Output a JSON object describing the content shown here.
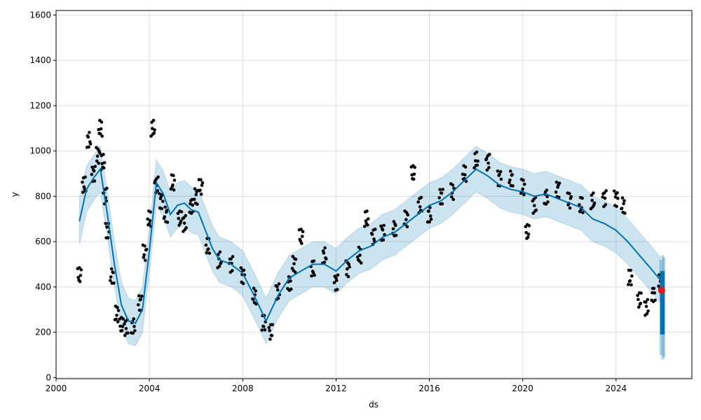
{
  "chart_data": {
    "type": "line",
    "xlabel": "ds",
    "ylabel": "y",
    "xlim": [
      2000.0,
      2027.25
    ],
    "ylim": [
      -5,
      1620
    ],
    "grid": true,
    "x_ticks": [
      2000,
      2004,
      2008,
      2012,
      2016,
      2020,
      2024
    ],
    "y_ticks": [
      0,
      200,
      400,
      600,
      800,
      1000,
      1200,
      1400,
      1600
    ],
    "colors": {
      "observed": "#000000",
      "forecast": "#0072B2",
      "uncertainty": "#0072B2",
      "highlight": "#e41a1c"
    },
    "series": [
      {
        "kind": "observed points",
        "x": [
          2001.0,
          2001.2,
          2001.4,
          2001.6,
          2001.8,
          2001.9,
          2002.0,
          2002.1,
          2002.2,
          2002.4,
          2002.6,
          2002.8,
          2003.0,
          2003.3,
          2003.6,
          2003.8,
          2004.0,
          2004.15,
          2004.3,
          2004.5,
          2004.7,
          2005.0,
          2005.3,
          2005.5,
          2005.8,
          2006.0,
          2006.2,
          2006.5,
          2007.0,
          2007.5,
          2008.0,
          2008.5,
          2008.9,
          2009.2,
          2009.5,
          2010.0,
          2010.2,
          2010.5,
          2011.0,
          2011.5,
          2012.0,
          2012.5,
          2013.0,
          2013.3,
          2013.6,
          2014.0,
          2014.5,
          2015.0,
          2015.3,
          2015.6,
          2016.0,
          2016.5,
          2017.0,
          2017.5,
          2018.0,
          2018.5,
          2019.0,
          2019.5,
          2020.0,
          2020.2,
          2020.5,
          2021.0,
          2021.5,
          2022.0,
          2022.5,
          2023.0,
          2023.5,
          2024.0,
          2024.3,
          2024.6,
          2025.0,
          2025.3,
          2025.6,
          2025.9
        ],
        "y": [
          450,
          850,
          1050,
          900,
          980,
          1100,
          950,
          800,
          650,
          450,
          280,
          230,
          220,
          230,
          330,
          550,
          700,
          1100,
          850,
          780,
          720,
          860,
          700,
          680,
          760,
          800,
          840,
          580,
          520,
          500,
          450,
          360,
          240,
          200,
          380,
          420,
          500,
          620,
          480,
          540,
          420,
          480,
          540,
          700,
          620,
          640,
          660,
          700,
          900,
          760,
          720,
          800,
          820,
          900,
          960,
          950,
          880,
          880,
          840,
          640,
          760,
          800,
          830,
          780,
          760,
          780,
          790,
          790,
          760,
          440,
          340,
          310,
          370,
          420
        ]
      },
      {
        "kind": "forecast line",
        "x": [
          2001.0,
          2001.3,
          2001.6,
          2001.9,
          2002.2,
          2002.5,
          2002.8,
          2003.1,
          2003.4,
          2003.7,
          2004.0,
          2004.3,
          2004.6,
          2004.9,
          2005.2,
          2005.5,
          2005.8,
          2006.1,
          2006.4,
          2006.7,
          2007.0,
          2007.5,
          2008.0,
          2008.5,
          2009.0,
          2009.5,
          2010.0,
          2010.5,
          2011.0,
          2011.5,
          2012.0,
          2012.5,
          2013.0,
          2013.5,
          2014.0,
          2014.5,
          2015.0,
          2015.5,
          2016.0,
          2016.5,
          2017.0,
          2017.5,
          2018.0,
          2018.5,
          2019.0,
          2019.5,
          2020.0,
          2020.5,
          2021.0,
          2021.5,
          2022.0,
          2022.5,
          2023.0,
          2023.5,
          2024.0,
          2024.5,
          2025.0,
          2025.5,
          2025.9
        ],
        "y": [
          690,
          830,
          880,
          920,
          720,
          500,
          320,
          250,
          240,
          300,
          560,
          860,
          810,
          720,
          760,
          770,
          740,
          730,
          650,
          570,
          520,
          500,
          460,
          360,
          250,
          360,
          440,
          470,
          500,
          500,
          470,
          520,
          560,
          580,
          620,
          640,
          680,
          720,
          760,
          780,
          820,
          870,
          920,
          890,
          850,
          830,
          820,
          800,
          810,
          790,
          770,
          750,
          700,
          680,
          650,
          600,
          540,
          480,
          430
        ]
      },
      {
        "kind": "forecast band upper",
        "y": [
          790,
          930,
          980,
          1020,
          820,
          600,
          420,
          350,
          340,
          400,
          660,
          960,
          910,
          820,
          860,
          870,
          840,
          830,
          750,
          670,
          620,
          600,
          560,
          460,
          350,
          460,
          540,
          570,
          600,
          600,
          570,
          620,
          660,
          680,
          720,
          740,
          780,
          820,
          860,
          880,
          920,
          970,
          1020,
          990,
          950,
          930,
          920,
          900,
          910,
          890,
          870,
          850,
          800,
          780,
          750,
          700,
          640,
          580,
          530
        ]
      },
      {
        "kind": "forecast band lower",
        "y": [
          590,
          730,
          780,
          820,
          620,
          400,
          220,
          150,
          140,
          200,
          460,
          760,
          710,
          620,
          660,
          670,
          640,
          630,
          550,
          470,
          420,
          400,
          360,
          260,
          150,
          260,
          340,
          370,
          400,
          400,
          370,
          420,
          460,
          480,
          520,
          540,
          580,
          620,
          660,
          680,
          720,
          770,
          820,
          790,
          750,
          730,
          720,
          700,
          710,
          690,
          670,
          650,
          600,
          580,
          550,
          500,
          440,
          380,
          330
        ]
      },
      {
        "kind": "future forecast",
        "x": [
          2025.92,
          2026.0,
          2026.05
        ],
        "y": [
          380,
          400,
          390
        ],
        "upper": [
          520,
          540,
          530
        ],
        "lower": [
          100,
          80,
          90
        ]
      }
    ],
    "highlight_point": {
      "x": 2025.95,
      "y": 385
    }
  }
}
